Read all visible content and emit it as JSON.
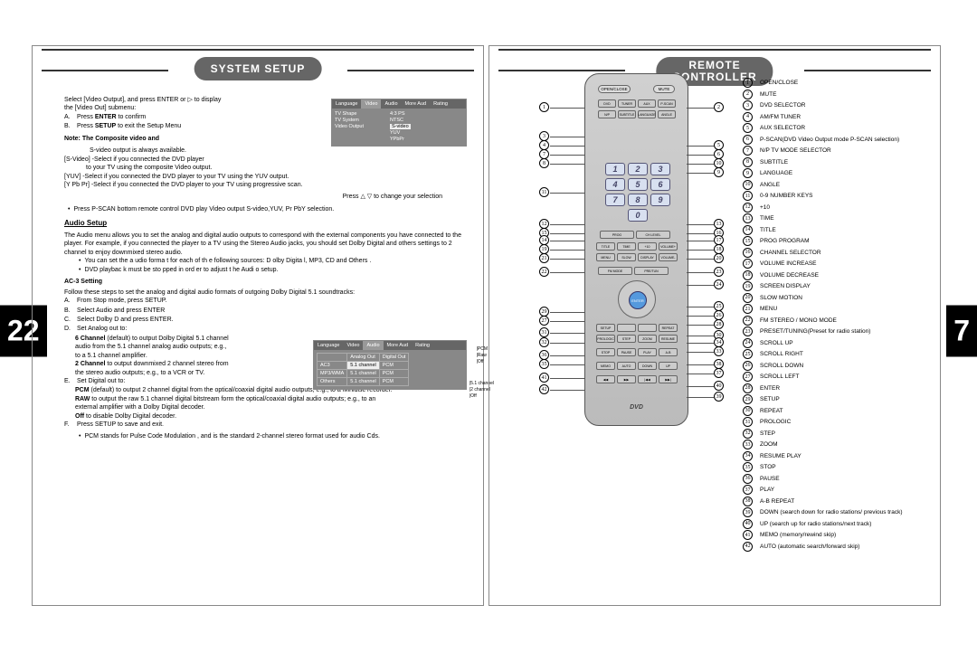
{
  "left": {
    "page_num": "22",
    "header": "SYSTEM SETUP",
    "intro1": "Select [Video Output], and press ENTER or ▷ to display",
    "intro2": "the [Video Out] submenu:",
    "stepA": "Press ENTER to confirm",
    "stepB": "Press SETUP to exit the Setup Menu",
    "note1": "Note: The Composite video and",
    "note2": "S-video output is always available.",
    "sv1": "[S-Video] -Select if you connected the DVD player",
    "sv2": "to your TV using the composite Video output.",
    "yuv": "[YUV] -Select if  you connected the DVD player to your TV using the YUV output.",
    "ypbpr": "[Y Pb Pr] -Select if you connected the DVD player to your TV using progressive scan.",
    "press_arrows": "Press △ ▽ to change your selection",
    "pscan": "Press P-SCAN bottom remote control DVD play Video output S-video,YUV, Pr PbY selection.",
    "audio_title": "Audio Setup",
    "audio_intro": "The Audio menu allows you to set the analog and digital audio outputs to correspond with the external components you have connected to the player. For example, if you connected the player to a TV using the Stereo Audio jacks, you should set Dolby Digital and others settings to 2 channel to enjoy downmixed stereo audio.",
    "audio_b1": "You can set the a udio forma t for each of th e following  sources: D olby Digita l, MP3, CD and Others .",
    "audio_b2": "DVD playbac k must be sto pped in ord er to adjust t he Audi o setup.",
    "ac3_title": "AC-3 Setting",
    "ac3_intro": "Follow these steps to set the analog and digital audio formats of outgoing Dolby Digital 5.1 soundtracks:",
    "sA": "From Stop mode, press SETUP.",
    "sB": "Select Audio and press ENTER",
    "sC": "Select Dolby D and press ENTER.",
    "sD": "Set Analog out to:",
    "sD1a": "6 Channel (default) to output Dolby Digital 5.1 channel",
    "sD1b": "audio from the 5.1 channel analog audio outputs; e.g.,",
    "sD1c": "to a 5.1 channel amplifier.",
    "sD2a": "2 Channel to output downmixed 2 channel stereo from",
    "sD2b": "the stereo audio outputs; e.g., to a VCR or TV.",
    "sE": "Set Digital out to:",
    "sE1": "PCM (default) to output 2 channel digital from the optical/coaxial  digital audio outputs; e.g., to a Minidisc recorder.",
    "sE2": "RAW to output the raw 5.1 channel digital bitstream form the optical/coaxial digital audio outputs; e.g., to an",
    "sE2b": "external amplifier with a Dolby Digital decoder.",
    "sE3": "Off to disable Dolby Digital decoder.",
    "sF": "Press SETUP to save and exit.",
    "pcm_note": "PCM stands for Pulse Code Modulation , and is the standard 2-channel stereo format used for audio Cds.",
    "menu1": {
      "tabs": [
        "Language",
        "Video",
        "Audio",
        "More Aud",
        "Rating"
      ],
      "rows": [
        [
          "TV Shape",
          "4:3 PS"
        ],
        [
          "TV System",
          "NTSC"
        ],
        [
          "Video Output",
          "S-video"
        ],
        [
          "",
          "YUV"
        ],
        [
          "",
          "YPbPr"
        ]
      ]
    },
    "menu2": {
      "tabs": [
        "Language",
        "Video",
        "Audio",
        "More Aud",
        "Rating"
      ],
      "head": [
        "",
        "Analog Out",
        "Digital Out"
      ],
      "rows": [
        [
          "AC3",
          "5.1 channel",
          "PCM"
        ],
        [
          "MP3/WMA",
          "5.1 channel",
          "PCM"
        ],
        [
          "Others",
          "5.1 channel",
          "PCM"
        ]
      ],
      "side1": [
        "PCM",
        "Raw",
        "Off"
      ],
      "side2": [
        "5.1 channel",
        "2 channel",
        "Off"
      ]
    }
  },
  "right": {
    "page_num": "7",
    "header1": "REMOTE",
    "header2": "CONTROLLER",
    "legend": [
      "OPEN/CLOSE",
      "MUTE",
      "DVD SELECTOR",
      "AM/FM  TUNER",
      "AUX  SELECTOR",
      "P-SCAN(DVD Video Output mode P-SCAN selection)",
      "N/P  TV  MODE  SELECTOR",
      "SUBTITLE",
      "LANGUAGE",
      "ANGLE",
      "0-9 NUMBER  KEYS",
      "+10",
      "TIME",
      "TITLE",
      "PROG  PROGRAM",
      "CHANNEL SELECTOR",
      "VOLUME INCREASE",
      "VOLUME DECREASE",
      "SCREEN DISPLAY",
      "SLOW  MOTION",
      "MENU",
      "FM STEREO / MONO MODE",
      "PRESET/TUNING(Preset for radio station)",
      "SCROLL UP",
      "SCROLL RIGHT",
      "SCROLL DOWN",
      "SCROLL LEFT",
      "ENTER",
      "SETUP",
      "REPEAT",
      "PROLOGIC",
      "STEP",
      "ZOOM",
      "RESUME PLAY",
      "STOP",
      "PAUSE",
      "PLAY",
      "A-B REPEAT",
      "DOWN (search down for radio stations/ previous track)",
      "UP (search up for radio stations/next track)",
      "MEMO (memory/rewind skip)",
      "AUTO (automatic search/forward skip)"
    ],
    "left_callouts": [
      "1",
      "3",
      "4",
      "7",
      "8",
      "11",
      "12",
      "15",
      "14",
      "19",
      "21",
      "22",
      "29",
      "27",
      "31",
      "32",
      "36",
      "35",
      "41",
      "42"
    ],
    "right_callouts": [
      "2",
      "5",
      "6",
      "10",
      "9",
      "13",
      "16",
      "17",
      "18",
      "20",
      "23",
      "24",
      "25",
      "26",
      "28",
      "30",
      "34",
      "33",
      "38",
      "37",
      "40",
      "39"
    ],
    "remote_top": [
      [
        "OPEN/CLOSE",
        "MUTE"
      ],
      [
        "DVD",
        "TUNER",
        "AUX",
        "P-SCAN"
      ],
      [
        "N/P",
        "SUBTITLE",
        "LANGUAGE",
        "ANGLE"
      ]
    ],
    "numbers": [
      "1",
      "2",
      "3",
      "4",
      "5",
      "6",
      "7",
      "8",
      "9",
      "",
      "0",
      ""
    ],
    "enter": "ENTER"
  },
  "colors": {
    "badge": "#666666",
    "line": "#333333",
    "hilite": "#eeeeee"
  }
}
